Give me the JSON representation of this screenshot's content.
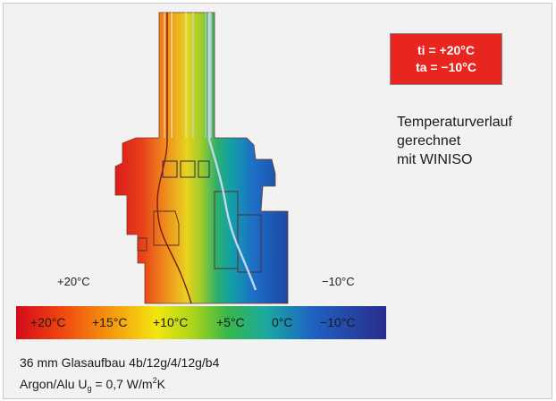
{
  "left_temp_label": "+20°C",
  "right_temp_label": "−10°C",
  "conditions": {
    "line1": "ti = +20°C",
    "line2": "ta = −10°C",
    "color": "#e8261f"
  },
  "description": {
    "line1": "Temperaturverlauf",
    "line2": "gerechnet",
    "line3": "mit WINISO"
  },
  "scale": {
    "ticks": [
      "+20°C",
      "+15°C",
      "+10°C",
      "+5°C",
      "0°C",
      "−10°C"
    ]
  },
  "caption": {
    "line1": "36 mm Glasaufbau 4b/12g/4/12g/b4",
    "line2_prefix": "Argon/Alu U",
    "line2_sub": "g",
    "line2_mid": " = 0,7 W/m",
    "line2_sup": "2",
    "line2_suffix": "K"
  },
  "colors": {
    "warm": "#e01e1e",
    "cool": "#1f4fb8"
  }
}
